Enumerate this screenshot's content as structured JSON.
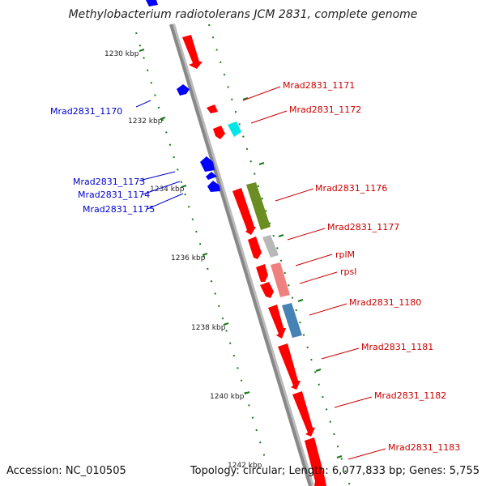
{
  "title": "Methylobacterium radiotolerans JCM 2831, complete genome",
  "footer": {
    "accession": "Accession: NC_010505",
    "topology": "Topology: circular; Length: 6,077,833 bp; Genes: 5,755"
  },
  "ticks": [
    "1230 kbp",
    "1232 kbp",
    "1234 kbp",
    "1236 kbp",
    "1238 kbp",
    "1240 kbp",
    "1242 kbp"
  ],
  "left_labels": [
    "Mrad2831_1170",
    "Mrad2831_1173",
    "Mrad2831_1174",
    "Mrad2831_1175"
  ],
  "right_labels": [
    "Mrad2831_1171",
    "Mrad2831_1172",
    "Mrad2831_1176",
    "Mrad2831_1177",
    "rplM",
    "rpsI",
    "Mrad2831_1180",
    "Mrad2831_1181",
    "Mrad2831_1182",
    "Mrad2831_1183"
  ],
  "colors": {
    "forward_gene": "#ff0000",
    "reverse_gene": "#0000ff",
    "right_label": "#cc0000",
    "left_label": "#0000cc",
    "backbone": "#888888",
    "tick": "#1a7a1a"
  }
}
